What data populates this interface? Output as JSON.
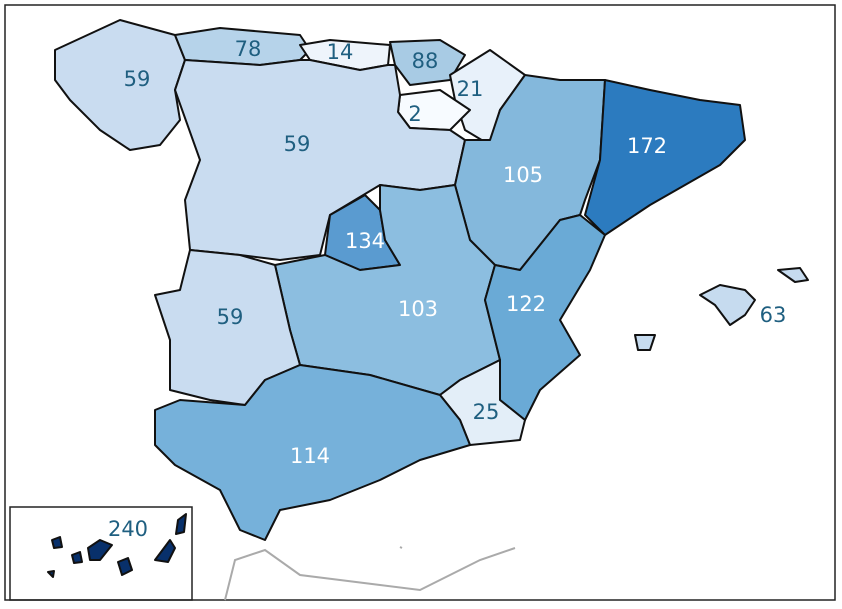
{
  "regions": [
    {
      "value": 59,
      "color": "#c9dcf0",
      "label_color": "#1f5f80"
    },
    {
      "value": 78,
      "color": "#b6d3ea",
      "label_color": "#1f5f80"
    },
    {
      "value": 14,
      "color": "#eef4fb",
      "label_color": "#1f5f80"
    },
    {
      "value": 88,
      "color": "#a8cbe4",
      "label_color": "#1f5f80"
    },
    {
      "value": 21,
      "color": "#e8f1fa",
      "label_color": "#1f5f80"
    },
    {
      "value": 2,
      "color": "#f7fbff",
      "label_color": "#1f5f80"
    },
    {
      "value": 59,
      "color": "#c9dcf0",
      "label_color": "#1f5f80"
    },
    {
      "value": 105,
      "color": "#84b8dc",
      "label_color": "#ffffff"
    },
    {
      "value": 172,
      "color": "#2c7bbf",
      "label_color": "#ffffff"
    },
    {
      "value": 134,
      "color": "#5a9bd0",
      "label_color": "#ffffff"
    },
    {
      "value": 103,
      "color": "#8cbee0",
      "label_color": "#ffffff"
    },
    {
      "value": 122,
      "color": "#6aaad6",
      "label_color": "#ffffff"
    },
    {
      "value": 59,
      "color": "#c9dcf0",
      "label_color": "#1f5f80"
    },
    {
      "value": 25,
      "color": "#e3eef8",
      "label_color": "#1f5f80"
    },
    {
      "value": 114,
      "color": "#76b1da",
      "label_color": "#ffffff"
    },
    {
      "value": 63,
      "color": "#c6dbef",
      "label_color": "#1f5f80"
    },
    {
      "value": 240,
      "color": "#08306b",
      "label_color": "#1f5f80"
    }
  ]
}
